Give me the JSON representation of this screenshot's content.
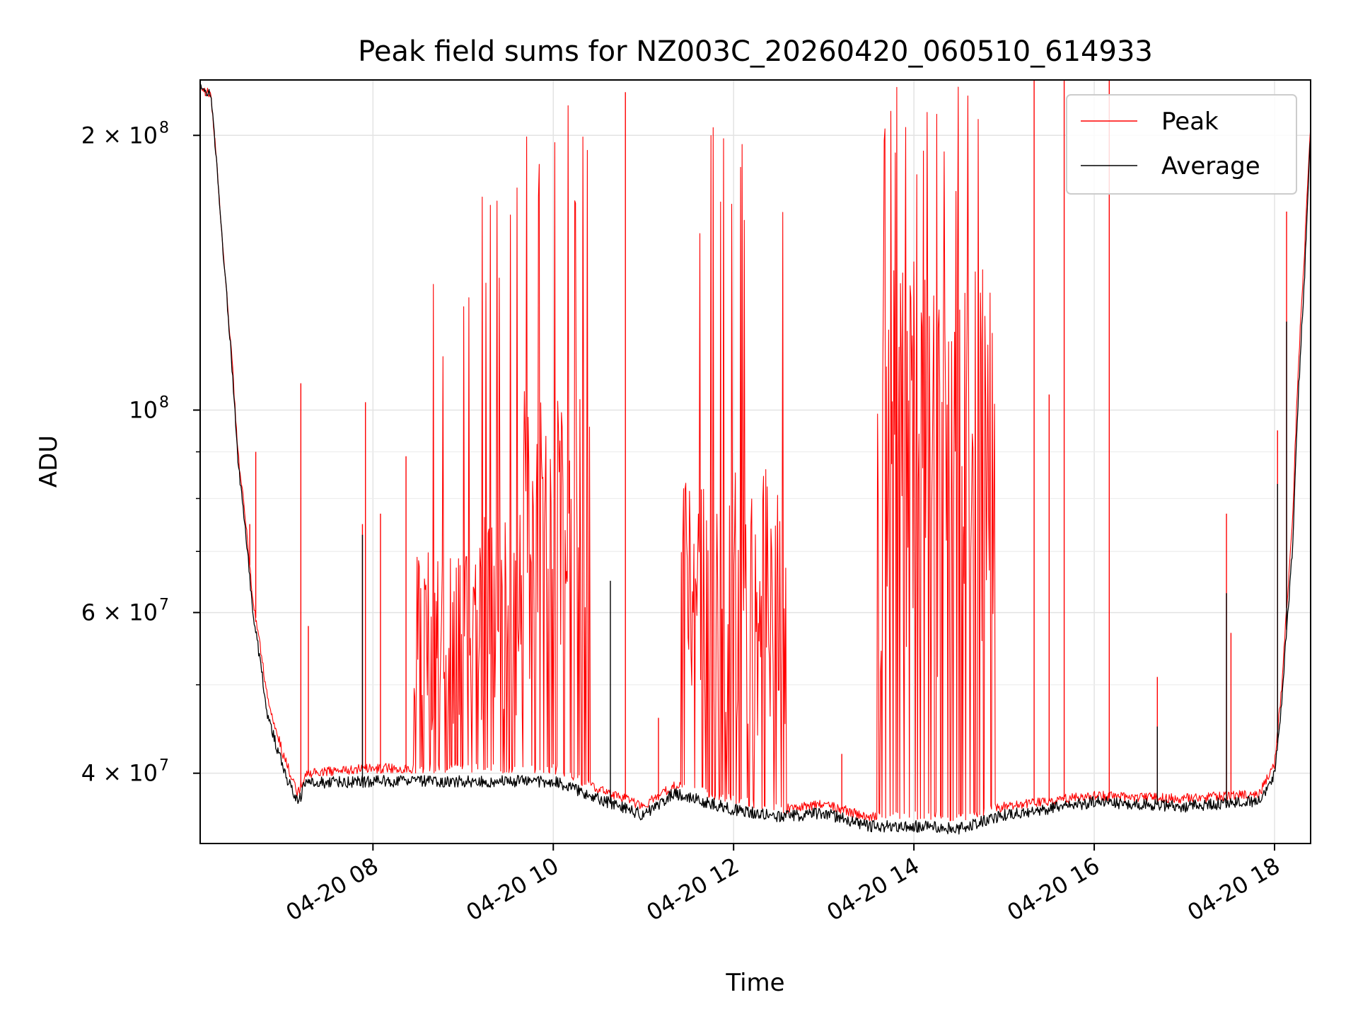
{
  "chart_data": {
    "type": "line",
    "title": "Peak field sums for NZ003C_20260420_060510_614933",
    "xlabel": "Time",
    "ylabel": "ADU",
    "y_scale": "log",
    "ylim": [
      33500000,
      230000000
    ],
    "xlim": [
      "2026-04-20 06:05",
      "2026-04-20 18:24"
    ],
    "grid": true,
    "legend": "top-right",
    "x_ticks": [
      {
        "t": "2026-04-20 08:00",
        "label": "04-20 08"
      },
      {
        "t": "2026-04-20 10:00",
        "label": "04-20 10"
      },
      {
        "t": "2026-04-20 12:00",
        "label": "04-20 12"
      },
      {
        "t": "2026-04-20 14:00",
        "label": "04-20 14"
      },
      {
        "t": "2026-04-20 16:00",
        "label": "04-20 16"
      },
      {
        "t": "2026-04-20 18:00",
        "label": "04-20 18"
      }
    ],
    "y_ticks": [
      {
        "v": 40000000,
        "label_base": "4 × 10",
        "exp": "7"
      },
      {
        "v": 60000000,
        "label_base": "6 × 10",
        "exp": "7"
      },
      {
        "v": 100000000,
        "label_base": "10",
        "exp": "8"
      },
      {
        "v": 200000000,
        "label_base": "2 × 10",
        "exp": "8"
      }
    ],
    "y_minor_ticks": [
      50000000,
      70000000,
      80000000,
      90000000
    ],
    "series": [
      {
        "name": "Peak",
        "color": "#ff0000",
        "baseline": [
          [
            "2026-04-20 06:05",
            225000000
          ],
          [
            "2026-04-20 06:12",
            222000000
          ],
          [
            "2026-04-20 06:20",
            150000000
          ],
          [
            "2026-04-20 06:30",
            90000000
          ],
          [
            "2026-04-20 06:40",
            62000000
          ],
          [
            "2026-04-20 06:50",
            48000000
          ],
          [
            "2026-04-20 07:00",
            42000000
          ],
          [
            "2026-04-20 07:10",
            38000000
          ],
          [
            "2026-04-20 07:15",
            40000000
          ],
          [
            "2026-04-20 08:00",
            40500000
          ],
          [
            "2026-04-20 10:00",
            40500000
          ],
          [
            "2026-04-20 10:30",
            38500000
          ],
          [
            "2026-04-20 11:00",
            36800000
          ],
          [
            "2026-04-20 11:20",
            38800000
          ],
          [
            "2026-04-20 12:00",
            37500000
          ],
          [
            "2026-04-20 12:30",
            36500000
          ],
          [
            "2026-04-20 13:00",
            37000000
          ],
          [
            "2026-04-20 13:30",
            35800000
          ],
          [
            "2026-04-20 14:00",
            36000000
          ],
          [
            "2026-04-20 14:30",
            35800000
          ],
          [
            "2026-04-20 15:00",
            36800000
          ],
          [
            "2026-04-20 16:00",
            37800000
          ],
          [
            "2026-04-20 17:00",
            37500000
          ],
          [
            "2026-04-20 17:50",
            38000000
          ],
          [
            "2026-04-20 18:00",
            41000000
          ],
          [
            "2026-04-20 18:05",
            50000000
          ],
          [
            "2026-04-20 18:12",
            75000000
          ],
          [
            "2026-04-20 18:20",
            150000000
          ],
          [
            "2026-04-20 18:24",
            205000000
          ]
        ],
        "bursts": [
          {
            "start": "2026-04-20 08:27",
            "end": "2026-04-20 09:10",
            "typical": 60000000,
            "max": 140000000
          },
          {
            "start": "2026-04-20 09:10",
            "end": "2026-04-20 09:40",
            "typical": 65000000,
            "max": 180000000
          },
          {
            "start": "2026-04-20 09:40",
            "end": "2026-04-20 10:25",
            "typical": 85000000,
            "max": 220000000
          },
          {
            "start": "2026-04-20 11:25",
            "end": "2026-04-20 12:35",
            "typical": 70000000,
            "max": 205000000
          },
          {
            "start": "2026-04-20 13:35",
            "end": "2026-04-20 14:55",
            "typical": 110000000,
            "max": 230000000
          }
        ],
        "spikes": [
          [
            "2026-04-20 06:38",
            75000000
          ],
          [
            "2026-04-20 06:42",
            90000000
          ],
          [
            "2026-04-20 07:12",
            107000000
          ],
          [
            "2026-04-20 07:17",
            58000000
          ],
          [
            "2026-04-20 07:53",
            75000000
          ],
          [
            "2026-04-20 07:55",
            102000000
          ],
          [
            "2026-04-20 08:05",
            77000000
          ],
          [
            "2026-04-20 08:22",
            89000000
          ],
          [
            "2026-04-20 10:48",
            223000000
          ],
          [
            "2026-04-20 11:10",
            46000000
          ],
          [
            "2026-04-20 13:12",
            42000000
          ],
          [
            "2026-04-20 15:20",
            230000000
          ],
          [
            "2026-04-20 15:30",
            104000000
          ],
          [
            "2026-04-20 15:40",
            230000000
          ],
          [
            "2026-04-20 16:10",
            230000000
          ],
          [
            "2026-04-20 16:42",
            51000000
          ],
          [
            "2026-04-20 17:28",
            77000000
          ],
          [
            "2026-04-20 17:31",
            57000000
          ],
          [
            "2026-04-20 18:02",
            95000000
          ],
          [
            "2026-04-20 18:08",
            165000000
          ]
        ]
      },
      {
        "name": "Average",
        "color": "#000000",
        "baseline": [
          [
            "2026-04-20 06:05",
            225000000
          ],
          [
            "2026-04-20 06:12",
            222000000
          ],
          [
            "2026-04-20 06:20",
            150000000
          ],
          [
            "2026-04-20 06:30",
            88000000
          ],
          [
            "2026-04-20 06:40",
            60000000
          ],
          [
            "2026-04-20 06:50",
            46000000
          ],
          [
            "2026-04-20 07:00",
            40500000
          ],
          [
            "2026-04-20 07:10",
            37000000
          ],
          [
            "2026-04-20 07:15",
            39000000
          ],
          [
            "2026-04-20 08:00",
            39200000
          ],
          [
            "2026-04-20 10:00",
            39200000
          ],
          [
            "2026-04-20 10:30",
            37500000
          ],
          [
            "2026-04-20 11:00",
            36000000
          ],
          [
            "2026-04-20 11:20",
            38000000
          ],
          [
            "2026-04-20 12:00",
            36500000
          ],
          [
            "2026-04-20 12:30",
            35800000
          ],
          [
            "2026-04-20 13:00",
            36200000
          ],
          [
            "2026-04-20 13:30",
            35000000
          ],
          [
            "2026-04-20 14:00",
            35000000
          ],
          [
            "2026-04-20 14:30",
            34800000
          ],
          [
            "2026-04-20 15:00",
            36000000
          ],
          [
            "2026-04-20 16:00",
            37200000
          ],
          [
            "2026-04-20 17:00",
            36800000
          ],
          [
            "2026-04-20 17:50",
            37300000
          ],
          [
            "2026-04-20 18:00",
            40000000
          ],
          [
            "2026-04-20 18:05",
            48000000
          ],
          [
            "2026-04-20 18:12",
            70000000
          ],
          [
            "2026-04-20 18:20",
            140000000
          ],
          [
            "2026-04-20 18:24",
            200000000
          ]
        ],
        "spikes": [
          [
            "2026-04-20 07:53",
            73000000
          ],
          [
            "2026-04-20 10:38",
            65000000
          ],
          [
            "2026-04-20 16:42",
            45000000
          ],
          [
            "2026-04-20 17:28",
            63000000
          ],
          [
            "2026-04-20 18:02",
            83000000
          ],
          [
            "2026-04-20 18:08",
            125000000
          ]
        ]
      }
    ]
  }
}
